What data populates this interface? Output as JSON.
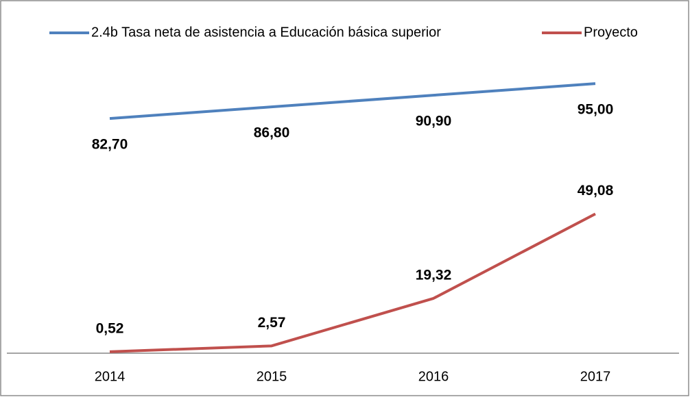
{
  "chart_data": {
    "type": "line",
    "categories": [
      "2014",
      "2015",
      "2016",
      "2017"
    ],
    "series": [
      {
        "name": "2.4b Tasa neta de asistencia a Educación básica superior",
        "color": "#4f81bd",
        "values": [
          82.7,
          86.8,
          90.9,
          95.0
        ],
        "value_labels": [
          "82,70",
          "86,80",
          "90,90",
          "95,00"
        ]
      },
      {
        "name": "Proyecto",
        "color": "#c0504d",
        "values": [
          0.52,
          2.57,
          19.32,
          49.08
        ],
        "value_labels": [
          "0,52",
          "2,57",
          "19,32",
          "49,08"
        ]
      }
    ],
    "ylim": [
      0,
      100
    ],
    "legend": "top"
  }
}
